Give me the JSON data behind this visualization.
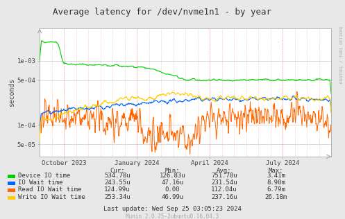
{
  "title": "Average latency for /dev/nvme1n1 - by year",
  "ylabel": "seconds",
  "right_label": "RRDTOOL / TOBI OETIKER",
  "bg_color": "#e8e8e8",
  "plot_bg_color": "#ffffff",
  "x_ticks_labels": [
    "October 2023",
    "January 2024",
    "April 2024",
    "July 2024"
  ],
  "ylim_min": 3.2e-05,
  "ylim_max": 0.0032,
  "legend_entries": [
    {
      "label": "Device IO time",
      "color": "#00cc00"
    },
    {
      "label": "IO Wait time",
      "color": "#0066ff"
    },
    {
      "label": "Read IO Wait time",
      "color": "#ff6600"
    },
    {
      "label": "Write IO Wait time",
      "color": "#ffcc00"
    }
  ],
  "table_headers": [
    "Cur:",
    "Min:",
    "Avg:",
    "Max:"
  ],
  "table_rows": [
    [
      "534.78u",
      "126.83u",
      "751.78u",
      "3.41m"
    ],
    [
      "243.55u",
      "47.16u",
      "231.54u",
      "8.90m"
    ],
    [
      "124.99u",
      "0.00",
      "112.04u",
      "6.79m"
    ],
    [
      "253.34u",
      "46.99u",
      "237.16u",
      "26.18m"
    ]
  ],
  "last_update": "Last update: Wed Sep 25 03:05:23 2024",
  "munin_version": "Munin 2.0.25-2ubuntu0.16.04.3",
  "seed": 42
}
